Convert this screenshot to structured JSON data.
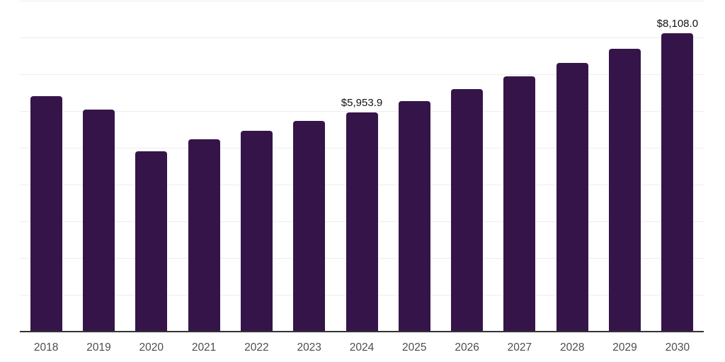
{
  "chart_data": {
    "type": "bar",
    "title": "",
    "xlabel": "",
    "ylabel": "",
    "categories": [
      "2018",
      "2019",
      "2020",
      "2021",
      "2022",
      "2023",
      "2024",
      "2025",
      "2026",
      "2027",
      "2028",
      "2029",
      "2030"
    ],
    "values": [
      6404,
      6031,
      4899,
      5233,
      5469,
      5724,
      5953.9,
      6268.3,
      6599.3,
      6947.8,
      7314.7,
      7701.0,
      8108.0
    ],
    "data_labels": [
      {
        "category": "2024",
        "text": "$5,953.9"
      },
      {
        "category": "2030",
        "text": "$8,108.0"
      }
    ],
    "ylim": [
      0,
      9000
    ],
    "grid": "horizontal gridlines every 1000, no y-axis tick labels",
    "gridline_step": 1000,
    "legend": "none",
    "colors": {
      "bar": "#351549",
      "gridline": "#ededed",
      "axis": "#333333",
      "data_label_text": "#111111",
      "tick_label_text": "#4d4d4d",
      "background": "#ffffff"
    }
  }
}
